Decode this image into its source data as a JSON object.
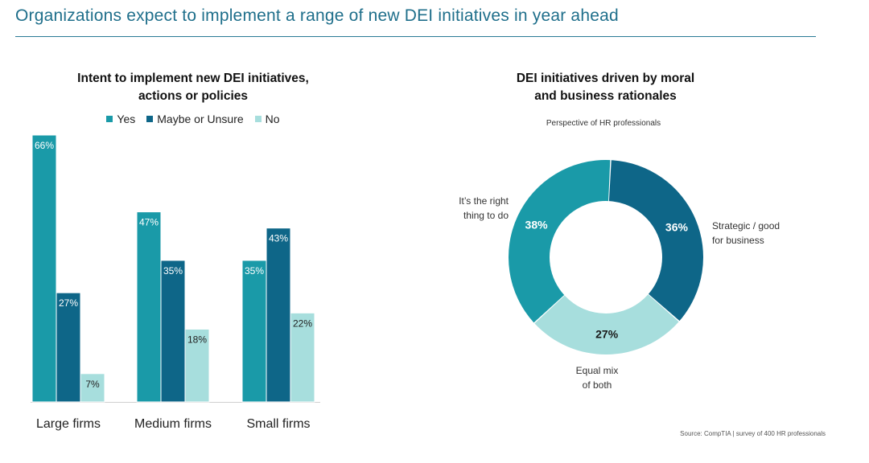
{
  "page": {
    "title": "Organizations expect to implement a range of new DEI initiatives in year ahead",
    "source": "Source: CompTIA | survey of 400 HR professionals"
  },
  "chart_data": [
    {
      "type": "bar",
      "title_lines": [
        "Intent to implement new DEI initiatives,",
        "actions or policies"
      ],
      "categories": [
        "Large firms",
        "Medium firms",
        "Small firms"
      ],
      "series": [
        {
          "name": "Yes",
          "values": [
            66,
            47,
            35
          ],
          "color": "#1a9aa8"
        },
        {
          "name": "Maybe or Unsure",
          "values": [
            27,
            35,
            43
          ],
          "color": "#0e6688"
        },
        {
          "name": "No",
          "values": [
            7,
            18,
            22
          ],
          "color": "#a7dedd"
        }
      ],
      "value_suffix": "%",
      "ylim": [
        0,
        66
      ],
      "grid": false,
      "legend_position": "top"
    },
    {
      "type": "pie",
      "style": "donut",
      "title_lines": [
        "DEI initiatives driven by moral",
        "and business rationales"
      ],
      "subtitle": "Perspective of HR professionals",
      "slices": [
        {
          "label_lines": [
            "Strategic / good",
            "for business"
          ],
          "value": 36,
          "color": "#0e6688",
          "text_color": "#ffffff"
        },
        {
          "label_lines": [
            "Equal mix",
            "of both"
          ],
          "value": 27,
          "color": "#a7dedd",
          "text_color": "#1a1a1a"
        },
        {
          "label_lines": [
            "It’s the right",
            "thing to do"
          ],
          "value": 38,
          "color": "#1a9aa8",
          "text_color": "#ffffff"
        }
      ],
      "value_suffix": "%"
    }
  ]
}
